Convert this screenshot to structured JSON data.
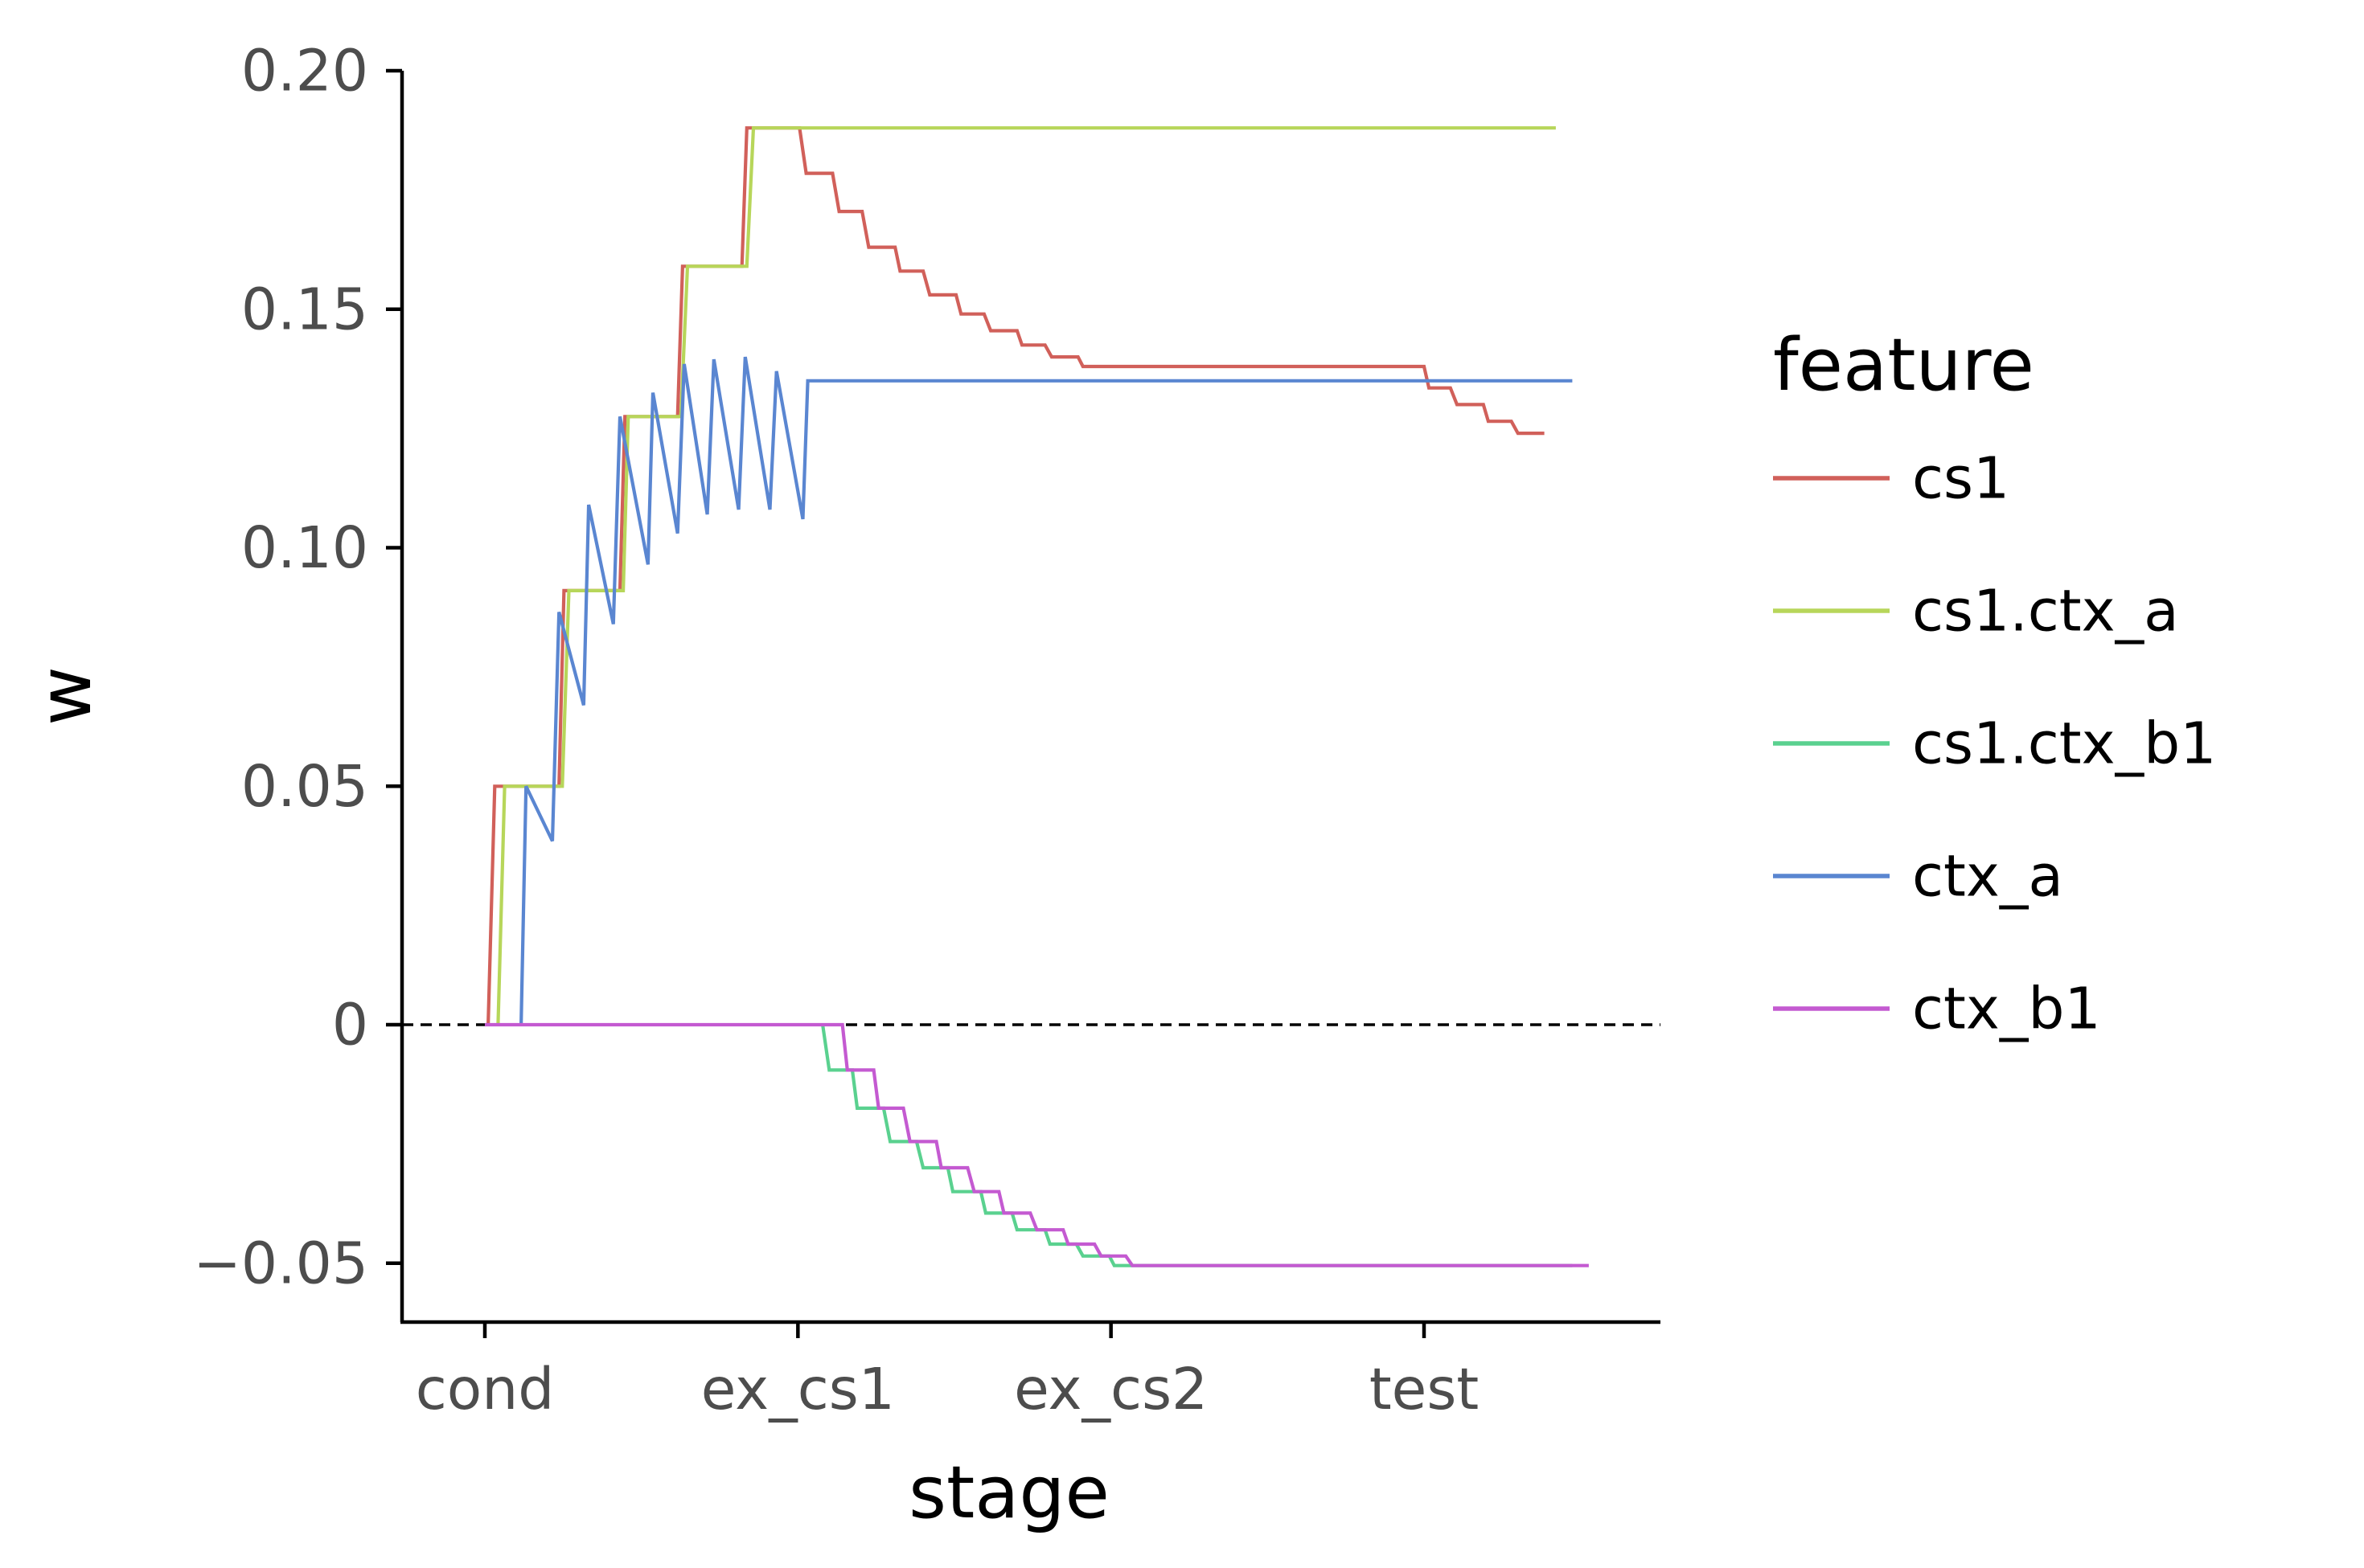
{
  "chart_data": {
    "type": "line",
    "xlabel": "stage",
    "ylabel": "w",
    "xlim": [
      -5,
      65
    ],
    "ylim": [
      -0.062,
      0.2
    ],
    "x_ticks": [
      {
        "value": 0,
        "label": "cond"
      },
      {
        "value": 19,
        "label": "ex_cs1"
      },
      {
        "value": 38,
        "label": "ex_cs2"
      },
      {
        "value": 57,
        "label": "test"
      }
    ],
    "y_ticks": [
      {
        "value": 0.2,
        "label": "0.20"
      },
      {
        "value": 0.15,
        "label": "0.15"
      },
      {
        "value": 0.1,
        "label": "0.10"
      },
      {
        "value": 0.05,
        "label": "0.05"
      },
      {
        "value": 0,
        "label": "0"
      },
      {
        "value": -0.05,
        "label": "−0.05"
      }
    ],
    "reference_line": {
      "y": 0,
      "style": "dashed",
      "color": "#000000"
    },
    "legend": {
      "title": "feature",
      "position": "right"
    },
    "series": [
      {
        "name": "cs1",
        "color": "#d1605a",
        "points": [
          [
            0.2,
            0
          ],
          [
            0.6,
            0.05
          ],
          [
            4.5,
            0.05
          ],
          [
            4.8,
            0.091
          ],
          [
            8.2,
            0.091
          ],
          [
            8.5,
            0.1275
          ],
          [
            11.7,
            0.1275
          ],
          [
            12.0,
            0.159
          ],
          [
            15.6,
            0.159
          ],
          [
            15.9,
            0.188
          ],
          [
            19.1,
            0.188
          ],
          [
            19.5,
            0.1785
          ],
          [
            21.1,
            0.1785
          ],
          [
            21.5,
            0.1705
          ],
          [
            22.9,
            0.1705
          ],
          [
            23.3,
            0.163
          ],
          [
            24.9,
            0.163
          ],
          [
            25.2,
            0.158
          ],
          [
            26.6,
            0.158
          ],
          [
            27.0,
            0.153
          ],
          [
            28.6,
            0.153
          ],
          [
            28.9,
            0.149
          ],
          [
            30.3,
            0.149
          ],
          [
            30.7,
            0.1455
          ],
          [
            32.3,
            0.1455
          ],
          [
            32.6,
            0.1425
          ],
          [
            34.0,
            0.1425
          ],
          [
            34.4,
            0.14
          ],
          [
            36.0,
            0.14
          ],
          [
            36.3,
            0.138
          ],
          [
            57.0,
            0.138
          ],
          [
            57.3,
            0.1335
          ],
          [
            58.6,
            0.1335
          ],
          [
            59.0,
            0.13
          ],
          [
            60.6,
            0.13
          ],
          [
            60.9,
            0.1265
          ],
          [
            62.3,
            0.1265
          ],
          [
            62.7,
            0.124
          ],
          [
            64.3,
            0.124
          ]
        ]
      },
      {
        "name": "cs1.ctx_a",
        "color": "#b7d65a",
        "points": [
          [
            0.8,
            0
          ],
          [
            1.2,
            0.05
          ],
          [
            4.7,
            0.05
          ],
          [
            5.1,
            0.091
          ],
          [
            8.4,
            0.091
          ],
          [
            8.7,
            0.1275
          ],
          [
            11.9,
            0.1275
          ],
          [
            12.3,
            0.159
          ],
          [
            15.9,
            0.159
          ],
          [
            16.3,
            0.188
          ],
          [
            65.0,
            0.188
          ]
        ]
      },
      {
        "name": "cs1.ctx_b1",
        "color": "#5ad18f",
        "points": [
          [
            20.5,
            0
          ],
          [
            20.9,
            -0.0095
          ],
          [
            22.3,
            -0.0095
          ],
          [
            22.6,
            -0.0175
          ],
          [
            24.2,
            -0.0175
          ],
          [
            24.6,
            -0.0245
          ],
          [
            26.2,
            -0.0245
          ],
          [
            26.6,
            -0.03
          ],
          [
            28.1,
            -0.03
          ],
          [
            28.4,
            -0.035
          ],
          [
            30.1,
            -0.035
          ],
          [
            30.4,
            -0.0395
          ],
          [
            32.0,
            -0.0395
          ],
          [
            32.3,
            -0.043
          ],
          [
            34.0,
            -0.043
          ],
          [
            34.3,
            -0.046
          ],
          [
            35.9,
            -0.046
          ],
          [
            36.3,
            -0.0485
          ],
          [
            37.9,
            -0.0485
          ],
          [
            38.2,
            -0.0505
          ],
          [
            66.0,
            -0.0505
          ]
        ]
      },
      {
        "name": "ctx_a",
        "color": "#5a86d1",
        "points": [
          [
            2.2,
            0
          ],
          [
            2.5,
            0.05
          ],
          [
            4.1,
            0.0385
          ],
          [
            4.5,
            0.0865
          ],
          [
            6.0,
            0.067
          ],
          [
            6.3,
            0.109
          ],
          [
            7.8,
            0.084
          ],
          [
            8.2,
            0.1275
          ],
          [
            9.9,
            0.0965
          ],
          [
            10.2,
            0.1325
          ],
          [
            11.7,
            0.103
          ],
          [
            12.1,
            0.1385
          ],
          [
            13.5,
            0.107
          ],
          [
            13.9,
            0.1395
          ],
          [
            15.4,
            0.108
          ],
          [
            15.8,
            0.14
          ],
          [
            17.3,
            0.108
          ],
          [
            17.7,
            0.137
          ],
          [
            19.3,
            0.106
          ],
          [
            19.6,
            0.135
          ],
          [
            66.0,
            0.135
          ]
        ]
      },
      {
        "name": "ctx_b1",
        "color": "#c45ad1",
        "points": [
          [
            0.0,
            0
          ],
          [
            21.7,
            0
          ],
          [
            22.0,
            -0.0095
          ],
          [
            23.6,
            -0.0095
          ],
          [
            23.9,
            -0.0175
          ],
          [
            25.4,
            -0.0175
          ],
          [
            25.8,
            -0.0245
          ],
          [
            27.4,
            -0.0245
          ],
          [
            27.7,
            -0.03
          ],
          [
            29.3,
            -0.03
          ],
          [
            29.7,
            -0.035
          ],
          [
            31.2,
            -0.035
          ],
          [
            31.5,
            -0.0395
          ],
          [
            33.1,
            -0.0395
          ],
          [
            33.5,
            -0.043
          ],
          [
            35.1,
            -0.043
          ],
          [
            35.4,
            -0.046
          ],
          [
            37.0,
            -0.046
          ],
          [
            37.4,
            -0.0485
          ],
          [
            38.9,
            -0.0485
          ],
          [
            39.3,
            -0.0505
          ],
          [
            67.0,
            -0.0505
          ]
        ]
      }
    ]
  }
}
